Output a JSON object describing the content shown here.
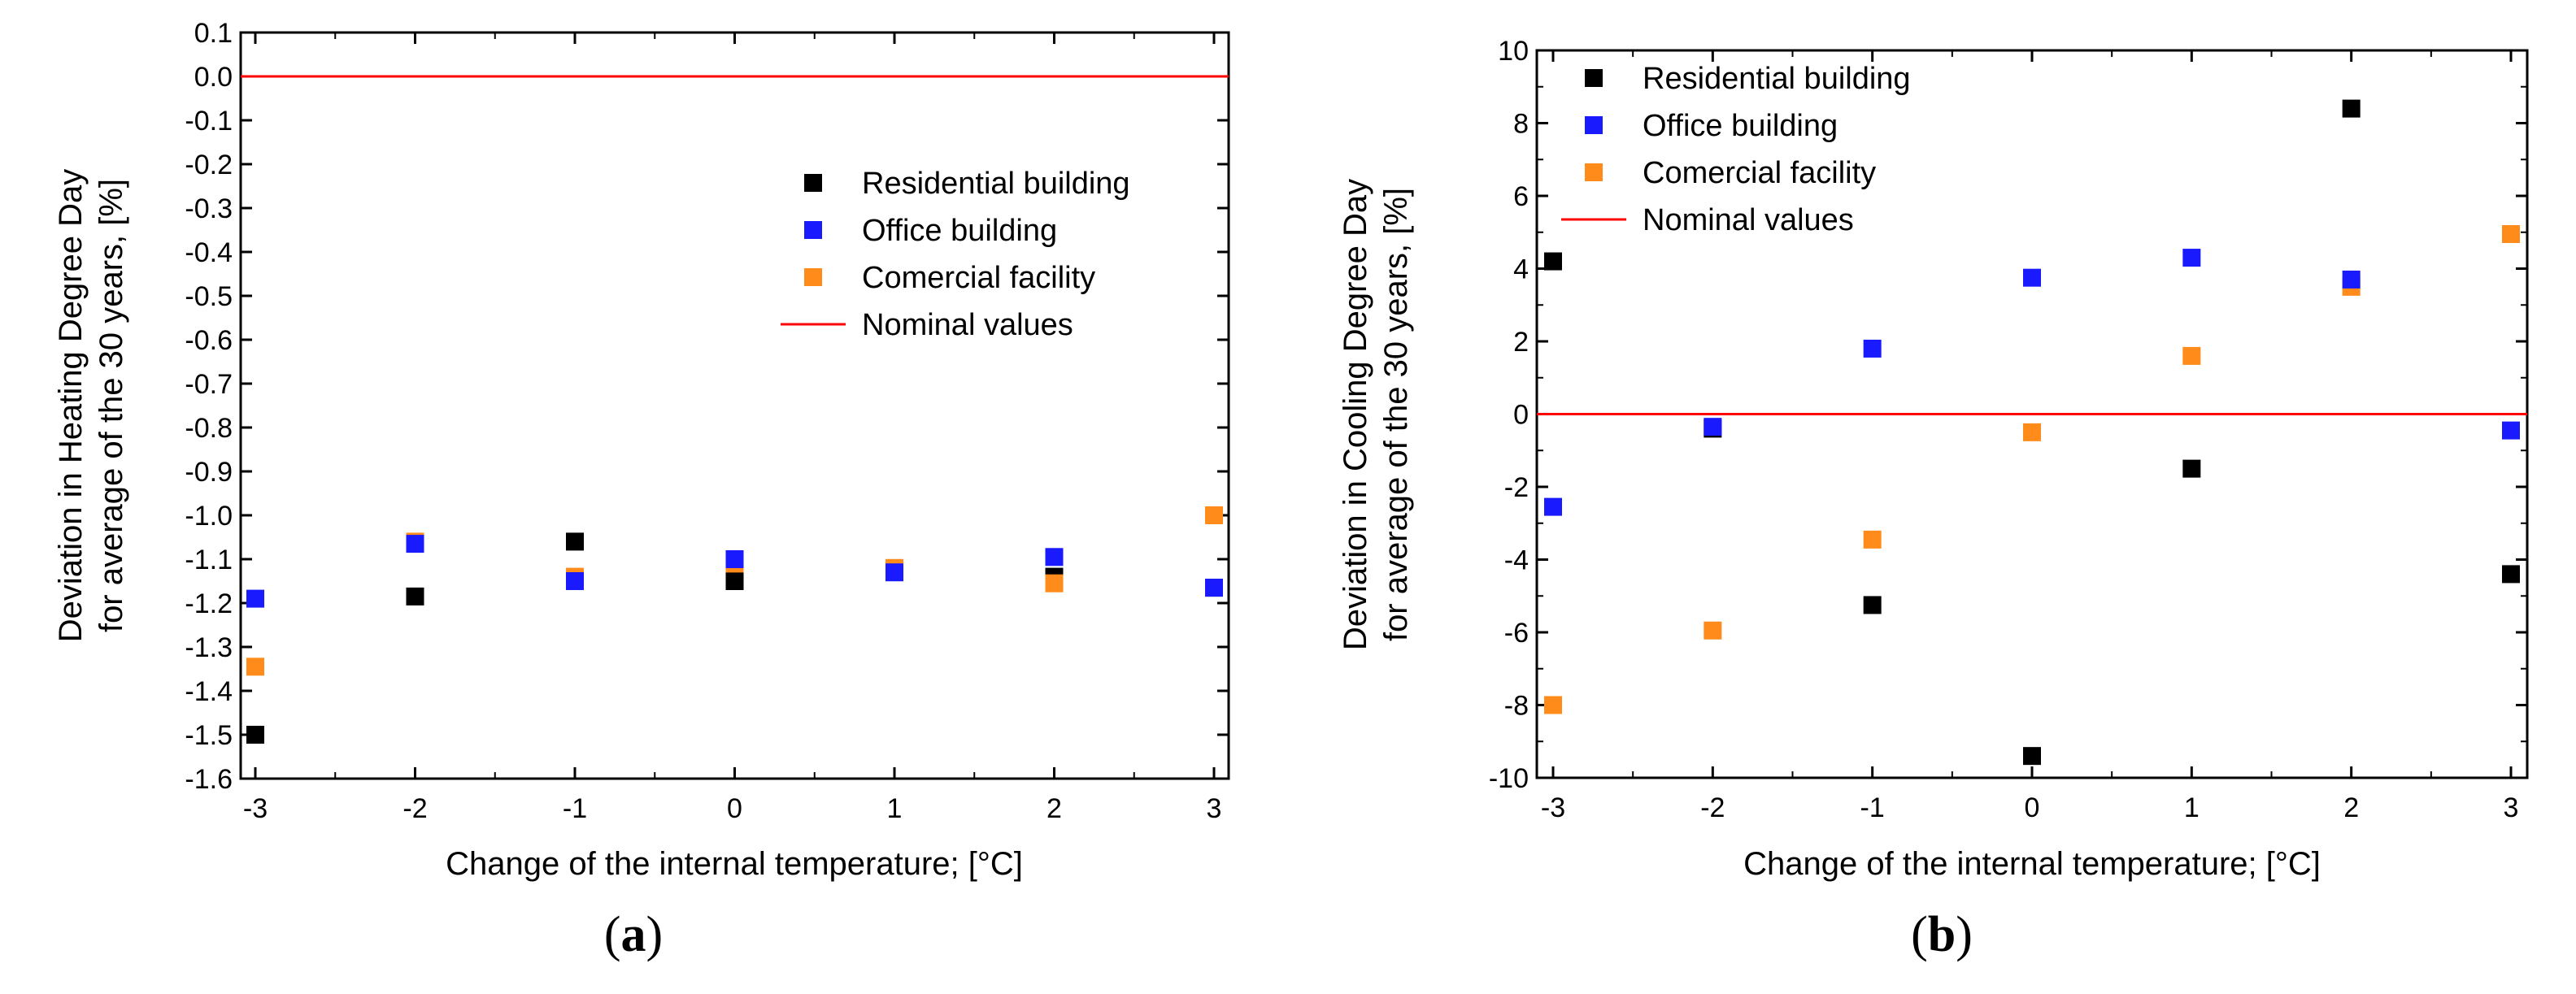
{
  "chart_data": [
    {
      "id": "a",
      "type": "scatter",
      "caption": "a",
      "xlabel": "Change of the internal temperature; [°C]",
      "ylabel": [
        "Deviation in Heating Degree Day",
        "for average of the 30 years, [%]"
      ],
      "xlim": [
        -3,
        3
      ],
      "ylim": [
        -1.6,
        0.1
      ],
      "xticks": [
        -3,
        -2,
        -1,
        0,
        1,
        2,
        3
      ],
      "yticks": [
        0.1,
        0.0,
        -0.1,
        -0.2,
        -0.3,
        -0.4,
        -0.5,
        -0.6,
        -0.7,
        -0.8,
        -0.9,
        -1.0,
        -1.1,
        -1.2,
        -1.3,
        -1.4,
        -1.5,
        -1.6
      ],
      "x": [
        -3,
        -2,
        -1,
        0,
        1,
        2,
        3
      ],
      "series": [
        {
          "name": "Residential building",
          "color": "#000000",
          "values": [
            -1.5,
            -1.185,
            -1.06,
            -1.15,
            -1.125,
            -1.14,
            -1.165
          ]
        },
        {
          "name": "Office building",
          "color": "#1a1aff",
          "values": [
            -1.19,
            -1.065,
            -1.15,
            -1.1,
            -1.13,
            -1.095,
            -1.165
          ]
        },
        {
          "name": "Comercial facility",
          "color": "#ff8c1a",
          "values": [
            -1.345,
            -1.06,
            -1.14,
            -1.11,
            -1.12,
            -1.155,
            -1.0
          ]
        }
      ],
      "reference_line": {
        "name": "Nominal values",
        "color": "#ff0000",
        "value": 0.0
      },
      "legend_position": "upper-right"
    },
    {
      "id": "b",
      "type": "scatter",
      "caption": "b",
      "xlabel": "Change of the internal temperature; [°C]",
      "ylabel": [
        "Deviation in Cooling Degree Day",
        "for average of the 30 years, [%]"
      ],
      "xlim": [
        -3,
        3
      ],
      "ylim": [
        -10,
        10
      ],
      "xticks": [
        -3,
        -2,
        -1,
        0,
        1,
        2,
        3
      ],
      "yticks": [
        10,
        8,
        6,
        4,
        2,
        0,
        -2,
        -4,
        -6,
        -8,
        -10
      ],
      "x": [
        -3,
        -2,
        -1,
        0,
        1,
        2,
        3
      ],
      "series": [
        {
          "name": "Residential building",
          "color": "#000000",
          "values": [
            4.2,
            -0.4,
            -5.25,
            -9.4,
            -1.5,
            8.4,
            -4.4
          ]
        },
        {
          "name": "Office building",
          "color": "#1a1aff",
          "values": [
            -2.55,
            -0.35,
            1.8,
            3.75,
            4.3,
            3.7,
            -0.45
          ]
        },
        {
          "name": "Comercial facility",
          "color": "#ff8c1a",
          "values": [
            -8.0,
            -5.95,
            -3.45,
            -0.5,
            1.6,
            3.5,
            4.95
          ]
        }
      ],
      "reference_line": {
        "name": "Nominal values",
        "color": "#ff0000",
        "value": 0
      },
      "legend_position": "upper-left"
    }
  ]
}
